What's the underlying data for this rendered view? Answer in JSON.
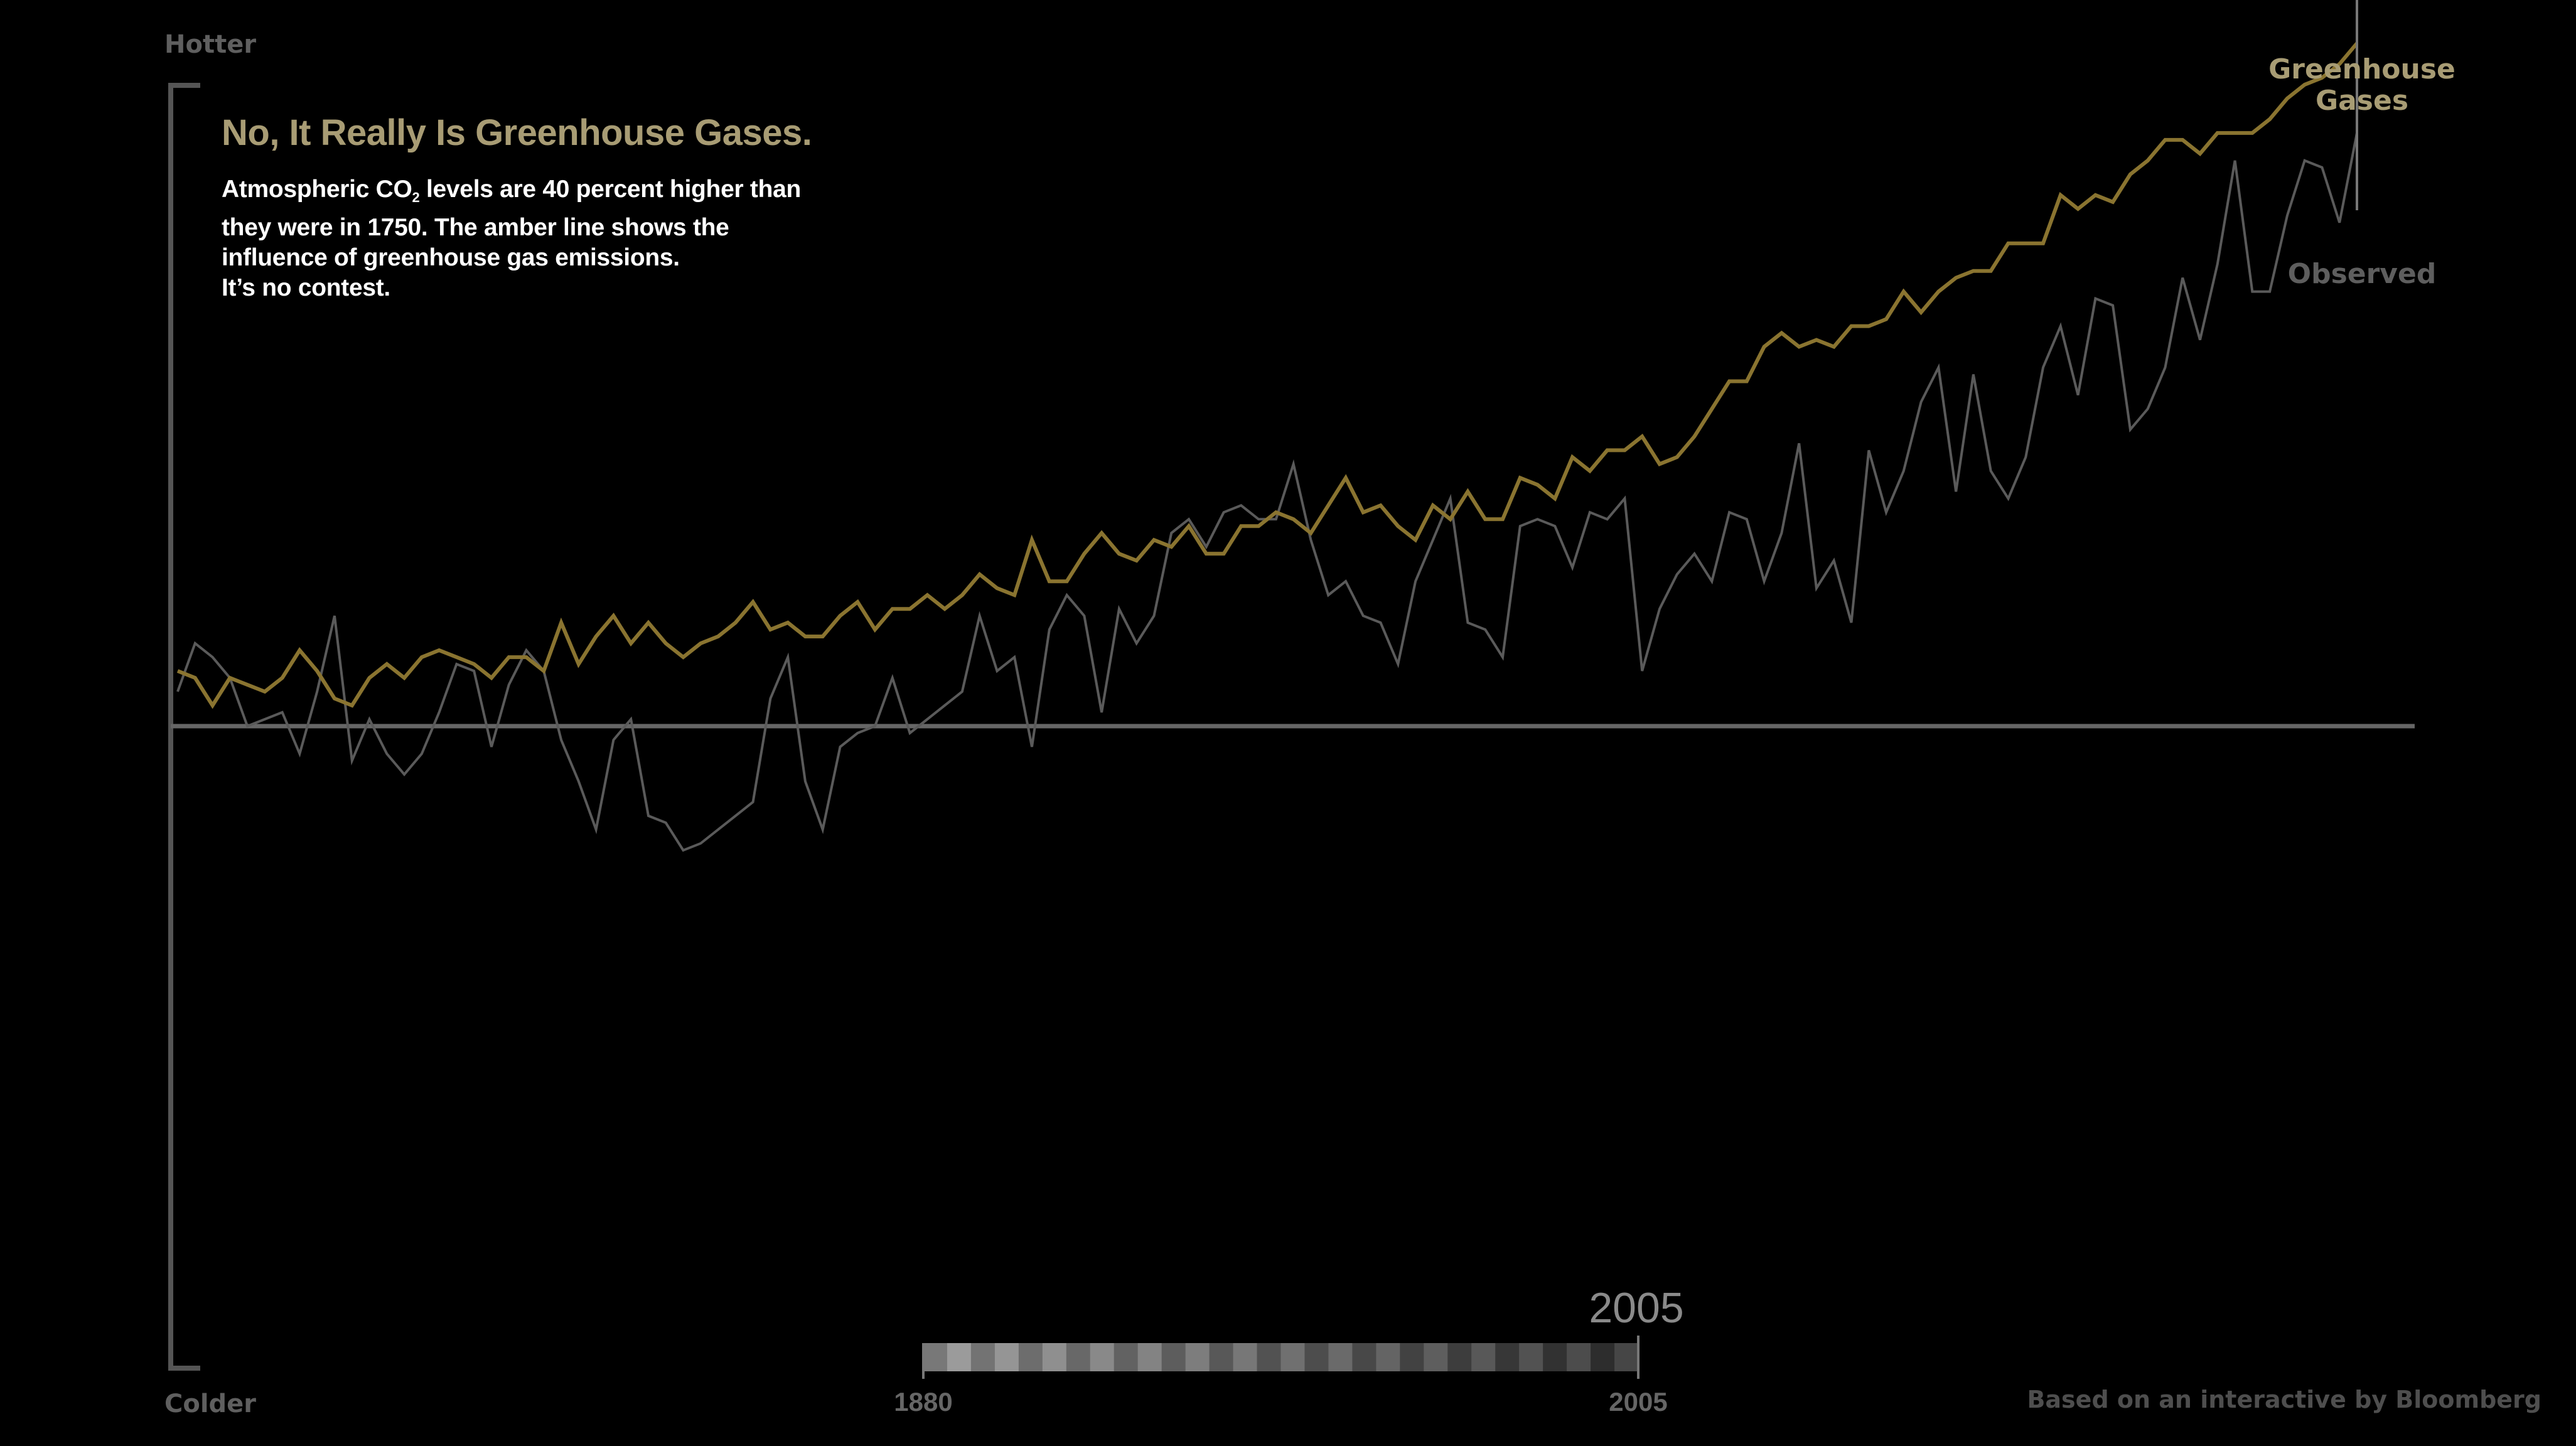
{
  "axis": {
    "top_label": "Hotter",
    "bottom_label": "Colder"
  },
  "header": {
    "title": "No, It Really Is Greenhouse Gases.",
    "body_lines": [
      {
        "pre": "Atmospheric CO",
        "sub": "2",
        "post": " levels are 40 percent higher than"
      },
      {
        "pre": "they were in 1750.  The amber line shows the"
      },
      {
        "pre": "influence of greenhouse gas emissions."
      },
      {
        "pre": "It’s no contest."
      }
    ]
  },
  "legend": {
    "greenhouse_line1": "Greenhouse",
    "greenhouse_line2": "Gases",
    "observed": "Observed"
  },
  "timeline": {
    "start_label": "1880",
    "end_label": "2005",
    "current_year": "2005",
    "current_value": 2005,
    "range": [
      1880,
      2005
    ]
  },
  "credit": "Based on an interactive by Bloomberg",
  "colors": {
    "greenhouse": "#8a7430",
    "greenhouse_label": "#a89c74",
    "observed": "#5a5a5a",
    "axis": "#555555",
    "background": "#000000"
  },
  "chart_data": {
    "type": "line",
    "title": "",
    "xlabel": "",
    "ylabel": "",
    "xlim": [
      1880,
      2005
    ],
    "ylim": [
      -0.93,
      0.93
    ],
    "grid": false,
    "x_start": 1880,
    "series": [
      {
        "name": "Greenhouse Gases",
        "color": "#8a7430",
        "values": [
          0.08,
          0.07,
          0.03,
          0.07,
          0.06,
          0.05,
          0.07,
          0.11,
          0.08,
          0.04,
          0.03,
          0.07,
          0.09,
          0.07,
          0.1,
          0.11,
          0.1,
          0.09,
          0.07,
          0.1,
          0.1,
          0.08,
          0.15,
          0.09,
          0.13,
          0.16,
          0.12,
          0.15,
          0.12,
          0.1,
          0.12,
          0.13,
          0.15,
          0.18,
          0.14,
          0.15,
          0.13,
          0.13,
          0.16,
          0.18,
          0.14,
          0.17,
          0.17,
          0.19,
          0.17,
          0.19,
          0.22,
          0.2,
          0.19,
          0.27,
          0.21,
          0.21,
          0.25,
          0.28,
          0.25,
          0.24,
          0.27,
          0.26,
          0.29,
          0.25,
          0.25,
          0.29,
          0.29,
          0.31,
          0.3,
          0.28,
          0.32,
          0.36,
          0.31,
          0.32,
          0.29,
          0.27,
          0.32,
          0.3,
          0.34,
          0.3,
          0.3,
          0.36,
          0.35,
          0.33,
          0.39,
          0.37,
          0.4,
          0.4,
          0.42,
          0.38,
          0.39,
          0.42,
          0.46,
          0.5,
          0.5,
          0.55,
          0.57,
          0.55,
          0.56,
          0.55,
          0.58,
          0.58,
          0.59,
          0.63,
          0.6,
          0.63,
          0.65,
          0.66,
          0.66,
          0.7,
          0.7,
          0.7,
          0.77,
          0.75,
          0.77,
          0.76,
          0.8,
          0.82,
          0.85,
          0.85,
          0.83,
          0.86,
          0.86,
          0.86,
          0.88,
          0.91,
          0.93,
          0.94,
          0.96,
          0.99
        ]
      },
      {
        "name": "Observed",
        "color": "#5a5a5a",
        "values": [
          0.05,
          0.12,
          0.1,
          0.07,
          0.0,
          0.01,
          0.02,
          -0.04,
          0.05,
          0.16,
          -0.05,
          0.01,
          -0.04,
          -0.07,
          -0.04,
          0.02,
          0.09,
          0.08,
          -0.03,
          0.06,
          0.11,
          0.08,
          -0.02,
          -0.08,
          -0.15,
          -0.02,
          0.01,
          -0.13,
          -0.14,
          -0.18,
          -0.17,
          -0.15,
          -0.13,
          -0.11,
          0.04,
          0.1,
          -0.08,
          -0.15,
          -0.03,
          -0.01,
          0.0,
          0.07,
          -0.01,
          0.01,
          0.03,
          0.05,
          0.16,
          0.08,
          0.1,
          -0.03,
          0.14,
          0.19,
          0.16,
          0.02,
          0.17,
          0.12,
          0.16,
          0.28,
          0.3,
          0.26,
          0.31,
          0.32,
          0.3,
          0.3,
          0.38,
          0.27,
          0.19,
          0.21,
          0.16,
          0.15,
          0.09,
          0.21,
          0.27,
          0.33,
          0.15,
          0.14,
          0.1,
          0.29,
          0.3,
          0.29,
          0.23,
          0.31,
          0.3,
          0.33,
          0.08,
          0.17,
          0.22,
          0.25,
          0.21,
          0.31,
          0.3,
          0.21,
          0.28,
          0.41,
          0.2,
          0.24,
          0.15,
          0.4,
          0.31,
          0.37,
          0.47,
          0.52,
          0.34,
          0.51,
          0.37,
          0.33,
          0.39,
          0.52,
          0.58,
          0.48,
          0.62,
          0.61,
          0.43,
          0.46,
          0.52,
          0.65,
          0.56,
          0.67,
          0.82,
          0.63,
          0.63,
          0.74,
          0.82,
          0.81,
          0.73,
          0.86
        ]
      }
    ]
  }
}
